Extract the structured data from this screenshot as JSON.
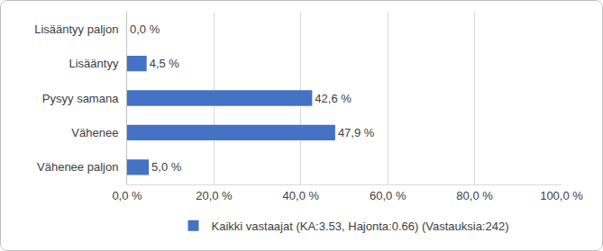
{
  "chart_data": {
    "type": "bar",
    "orientation": "horizontal",
    "categories": [
      "Lisääntyy paljon",
      "Lisääntyy",
      "Pysyy samana",
      "Vähenee",
      "Vähenee paljon"
    ],
    "series": [
      {
        "name": "Kaikki vastaajat (KA:3.53, Hajonta:0.66) (Vastauksia:242)",
        "color": "#4472c4",
        "values": [
          0.0,
          4.5,
          42.6,
          47.9,
          5.0
        ],
        "value_labels": [
          "0,0 %",
          "4,5 %",
          "42,6 %",
          "47,9 %",
          "5,0 %"
        ]
      }
    ],
    "xlim": [
      0,
      100
    ],
    "xticks": [
      {
        "value": 0,
        "label": "0,0 %"
      },
      {
        "value": 20,
        "label": "20,0 %"
      },
      {
        "value": 40,
        "label": "40,0 %"
      },
      {
        "value": 60,
        "label": "60,0 %"
      },
      {
        "value": 80,
        "label": "80,0 %"
      },
      {
        "value": 100,
        "label": "100,0 %"
      }
    ],
    "grid": true,
    "data_labels": true,
    "legend": "bottom"
  }
}
